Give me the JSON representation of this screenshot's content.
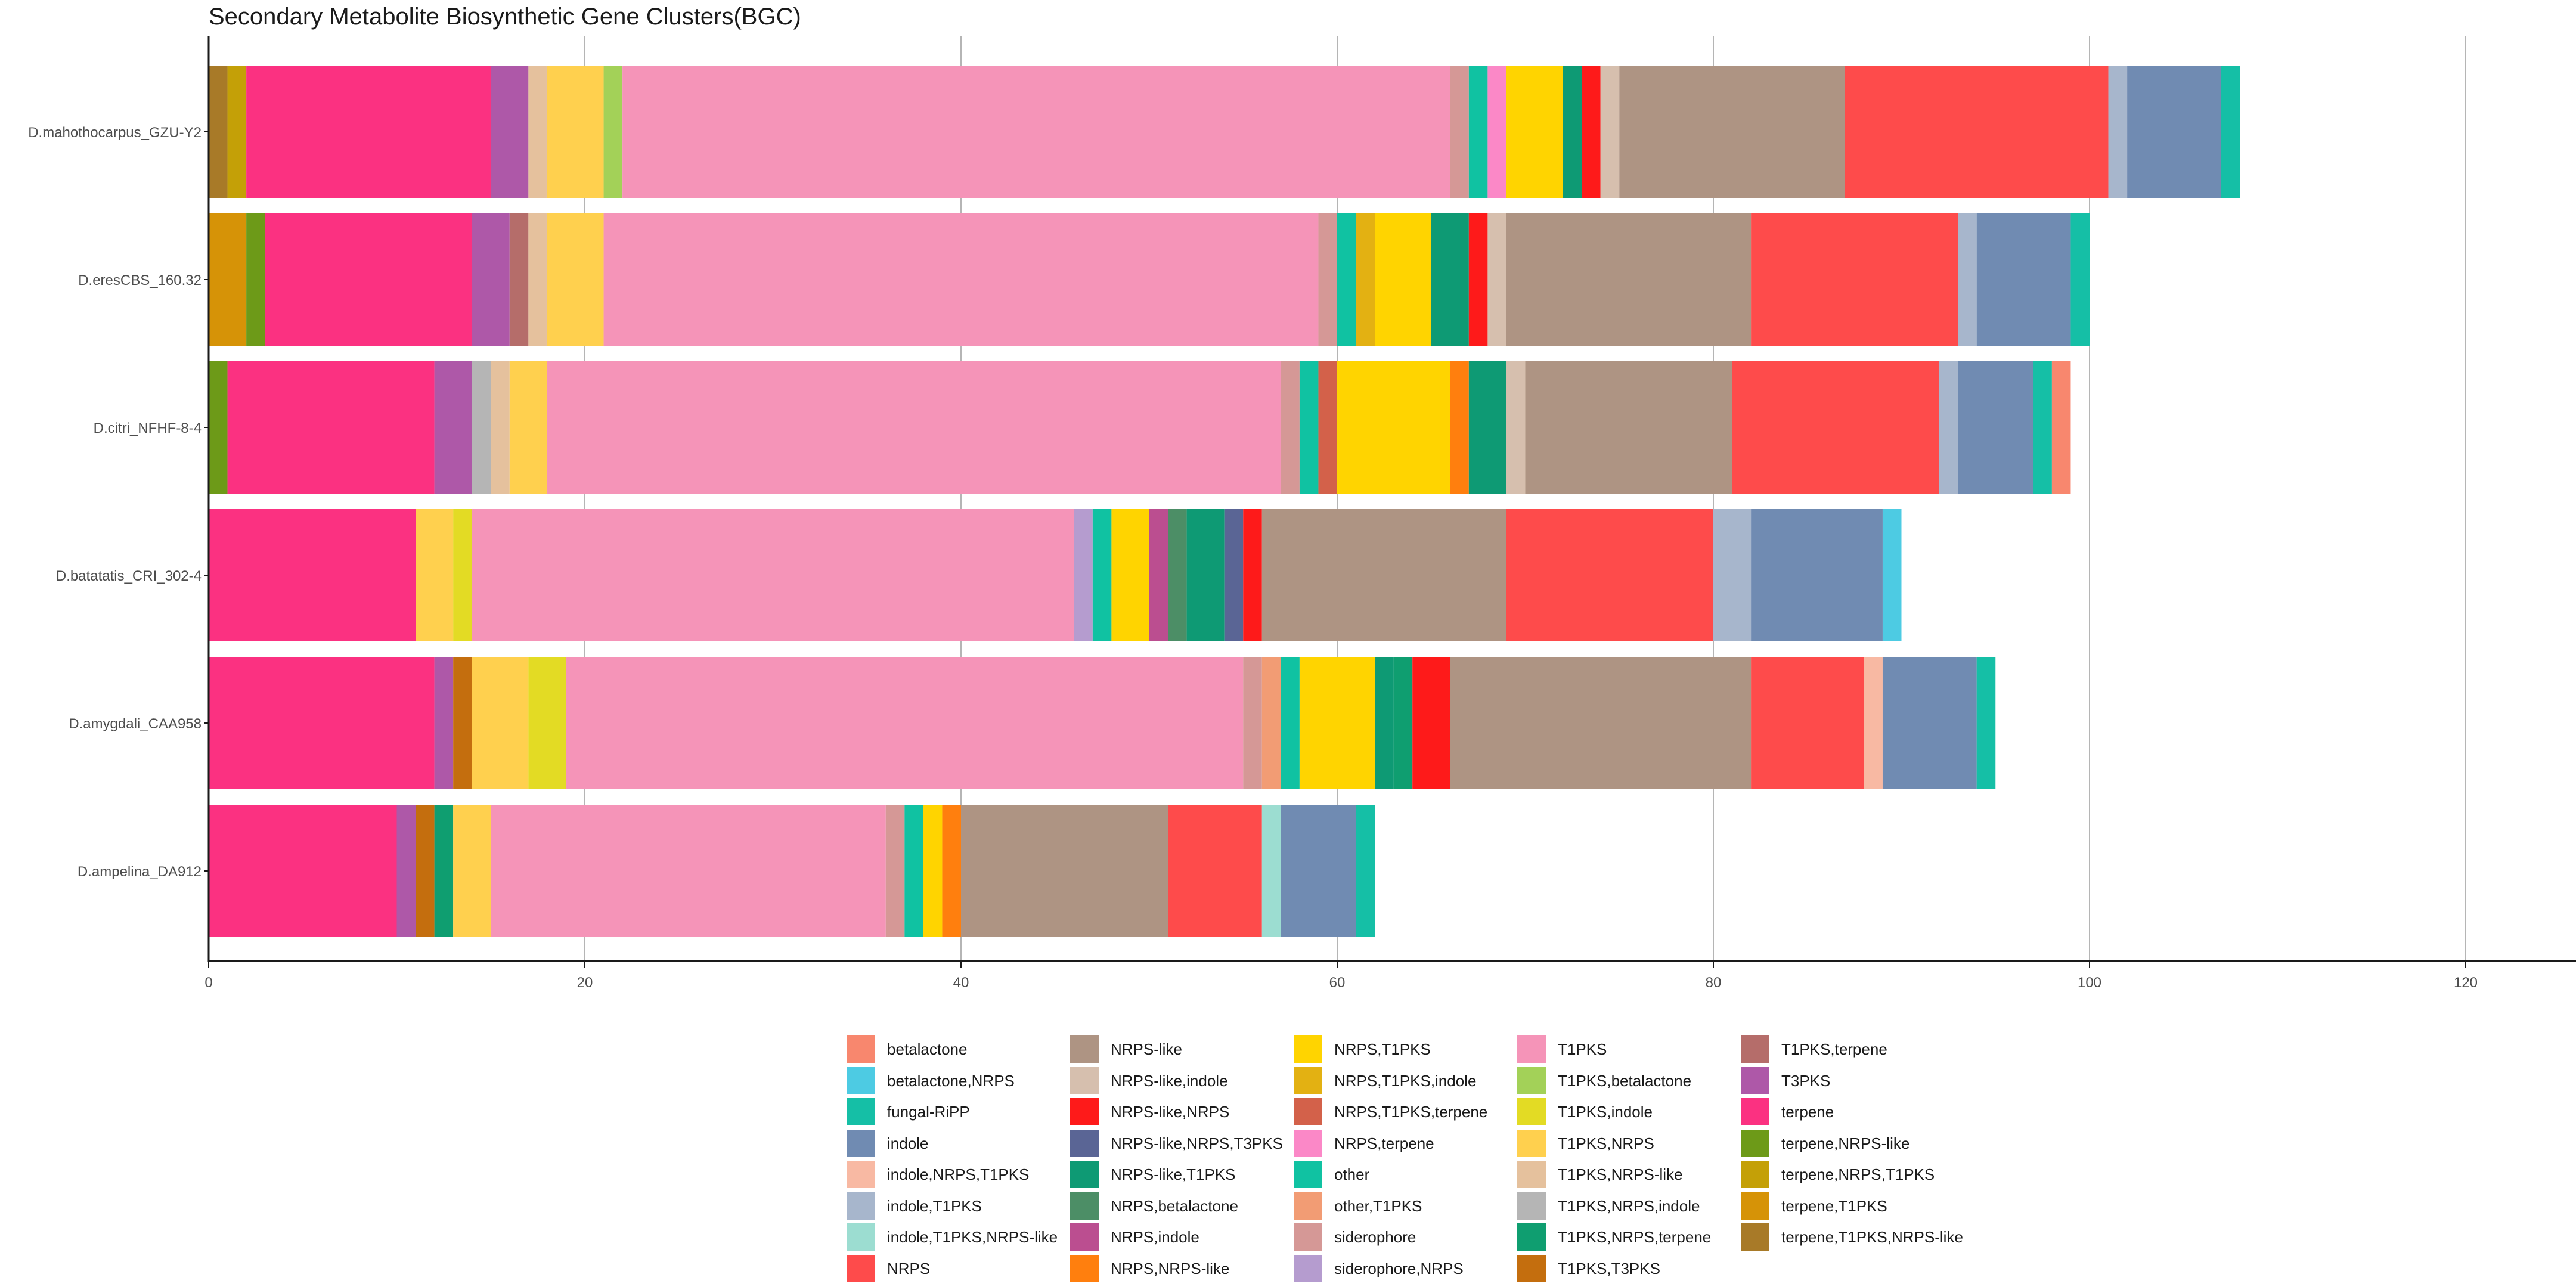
{
  "chart_data": {
    "type": "bar",
    "orientation": "horizontal",
    "stacked": true,
    "title": "Secondary Metabolite Biosynthetic Gene Clusters(BGC)",
    "xlabel": "",
    "ylabel": "",
    "xlim": [
      0,
      126
    ],
    "x_ticks": [
      0,
      20,
      40,
      60,
      80,
      100,
      120
    ],
    "grid": "vertical major lines",
    "legend_position": "bottom",
    "categories": [
      "D.mahothocarpus_GZU-Y2",
      "D.eresCBS_160.32",
      "D.citri_NFHF-8-4",
      "D.batatatis_CRI_302-4",
      "D.amygdali_CAA958",
      "D.ampelina_DA912"
    ],
    "legend": [
      {
        "name": "betalactone",
        "color": "#F8876E"
      },
      {
        "name": "betalactone,NRPS",
        "color": "#4DCBE3"
      },
      {
        "name": "fungal-RiPP",
        "color": "#15BFA6"
      },
      {
        "name": "indole",
        "color": "#708BB2"
      },
      {
        "name": "indole,NRPS,T1PKS",
        "color": "#F8B9A3"
      },
      {
        "name": "indole,T1PKS",
        "color": "#A7B6CC"
      },
      {
        "name": "indole,T1PKS,NRPS-like",
        "color": "#9CDDD1"
      },
      {
        "name": "NRPS",
        "color": "#FE4B4B"
      },
      {
        "name": "NRPS-like",
        "color": "#AE9483"
      },
      {
        "name": "NRPS-like,indole",
        "color": "#D6BFAE"
      },
      {
        "name": "NRPS-like,NRPS",
        "color": "#FE1A1A"
      },
      {
        "name": "NRPS-like,NRPS,T3PKS",
        "color": "#5A6595"
      },
      {
        "name": "NRPS-like,T1PKS",
        "color": "#0E9A74"
      },
      {
        "name": "NRPS,betalactone",
        "color": "#4C8E66"
      },
      {
        "name": "NRPS,indole",
        "color": "#BB4E90"
      },
      {
        "name": "NRPS,NRPS-like",
        "color": "#FF7F0E"
      },
      {
        "name": "NRPS,T1PKS",
        "color": "#FFD400"
      },
      {
        "name": "NRPS,T1PKS,indole",
        "color": "#E3B112"
      },
      {
        "name": "NRPS,T1PKS,terpene",
        "color": "#D3614A"
      },
      {
        "name": "NRPS,terpene",
        "color": "#FB88C7"
      },
      {
        "name": "other",
        "color": "#10C2A2"
      },
      {
        "name": "other,T1PKS",
        "color": "#F29C74"
      },
      {
        "name": "siderophore",
        "color": "#D59896"
      },
      {
        "name": "siderophore,NRPS",
        "color": "#B59CCF"
      },
      {
        "name": "T1PKS",
        "color": "#F594B8"
      },
      {
        "name": "T1PKS,betalactone",
        "color": "#A3D158"
      },
      {
        "name": "T1PKS,indole",
        "color": "#E3DB24"
      },
      {
        "name": "T1PKS,NRPS",
        "color": "#FFD04E"
      },
      {
        "name": "T1PKS,NRPS-like",
        "color": "#E5C19D"
      },
      {
        "name": "T1PKS,NRPS,indole",
        "color": "#B5B5B5"
      },
      {
        "name": "T1PKS,NRPS,terpene",
        "color": "#0F9E70"
      },
      {
        "name": "T1PKS,T3PKS",
        "color": "#C46E0E"
      },
      {
        "name": "T1PKS,terpene",
        "color": "#B56D6A"
      },
      {
        "name": "T3PKS",
        "color": "#AE58A8"
      },
      {
        "name": "terpene",
        "color": "#FB3181"
      },
      {
        "name": "terpene,NRPS-like",
        "color": "#6D9A18"
      },
      {
        "name": "terpene,NRPS,T1PKS",
        "color": "#C4A007"
      },
      {
        "name": "terpene,T1PKS",
        "color": "#D69307"
      },
      {
        "name": "terpene,T1PKS,NRPS-like",
        "color": "#A87A28"
      }
    ],
    "stacks": [
      {
        "category": "D.mahothocarpus_GZU-Y2",
        "segments": [
          {
            "type": "terpene,T1PKS,NRPS-like",
            "value": 1
          },
          {
            "type": "terpene,NRPS,T1PKS",
            "value": 1
          },
          {
            "type": "terpene",
            "value": 13
          },
          {
            "type": "T3PKS",
            "value": 2
          },
          {
            "type": "T1PKS,NRPS-like",
            "value": 1
          },
          {
            "type": "T1PKS,NRPS",
            "value": 3
          },
          {
            "type": "T1PKS,betalactone",
            "value": 1
          },
          {
            "type": "T1PKS",
            "value": 44
          },
          {
            "type": "siderophore",
            "value": 1
          },
          {
            "type": "other",
            "value": 1
          },
          {
            "type": "NRPS,terpene",
            "value": 1
          },
          {
            "type": "NRPS,T1PKS",
            "value": 3
          },
          {
            "type": "NRPS-like,T1PKS",
            "value": 1
          },
          {
            "type": "NRPS-like,NRPS",
            "value": 1
          },
          {
            "type": "NRPS-like,indole",
            "value": 1
          },
          {
            "type": "NRPS-like",
            "value": 12
          },
          {
            "type": "NRPS",
            "value": 14
          },
          {
            "type": "indole,T1PKS",
            "value": 1
          },
          {
            "type": "indole",
            "value": 5
          },
          {
            "type": "fungal-RiPP",
            "value": 1
          }
        ]
      },
      {
        "category": "D.eresCBS_160.32",
        "segments": [
          {
            "type": "terpene,T1PKS",
            "value": 2
          },
          {
            "type": "terpene,NRPS-like",
            "value": 1
          },
          {
            "type": "terpene",
            "value": 11
          },
          {
            "type": "T3PKS",
            "value": 2
          },
          {
            "type": "T1PKS,terpene",
            "value": 1
          },
          {
            "type": "T1PKS,NRPS-like",
            "value": 1
          },
          {
            "type": "T1PKS,NRPS",
            "value": 3
          },
          {
            "type": "T1PKS",
            "value": 38
          },
          {
            "type": "siderophore",
            "value": 1
          },
          {
            "type": "other",
            "value": 1
          },
          {
            "type": "NRPS,T1PKS,indole",
            "value": 1
          },
          {
            "type": "NRPS,T1PKS",
            "value": 3
          },
          {
            "type": "NRPS-like,T1PKS",
            "value": 2
          },
          {
            "type": "NRPS-like,NRPS",
            "value": 1
          },
          {
            "type": "NRPS-like,indole",
            "value": 1
          },
          {
            "type": "NRPS-like",
            "value": 13
          },
          {
            "type": "NRPS",
            "value": 11
          },
          {
            "type": "indole,T1PKS",
            "value": 1
          },
          {
            "type": "indole",
            "value": 5
          },
          {
            "type": "fungal-RiPP",
            "value": 1
          }
        ]
      },
      {
        "category": "D.citri_NFHF-8-4",
        "segments": [
          {
            "type": "terpene,NRPS-like",
            "value": 1
          },
          {
            "type": "terpene",
            "value": 11
          },
          {
            "type": "T3PKS",
            "value": 2
          },
          {
            "type": "T1PKS,NRPS,indole",
            "value": 1
          },
          {
            "type": "T1PKS,NRPS-like",
            "value": 1
          },
          {
            "type": "T1PKS,NRPS",
            "value": 2
          },
          {
            "type": "T1PKS",
            "value": 39
          },
          {
            "type": "siderophore",
            "value": 1
          },
          {
            "type": "other",
            "value": 1
          },
          {
            "type": "NRPS,T1PKS,terpene",
            "value": 1
          },
          {
            "type": "NRPS,T1PKS",
            "value": 6
          },
          {
            "type": "NRPS,NRPS-like",
            "value": 1
          },
          {
            "type": "NRPS-like,T1PKS",
            "value": 2
          },
          {
            "type": "NRPS-like,indole",
            "value": 1
          },
          {
            "type": "NRPS-like",
            "value": 11
          },
          {
            "type": "NRPS",
            "value": 11
          },
          {
            "type": "indole,T1PKS",
            "value": 1
          },
          {
            "type": "indole",
            "value": 4
          },
          {
            "type": "fungal-RiPP",
            "value": 1
          },
          {
            "type": "betalactone",
            "value": 1
          }
        ]
      },
      {
        "category": "D.batatatis_CRI_302-4",
        "segments": [
          {
            "type": "terpene",
            "value": 11
          },
          {
            "type": "T1PKS,NRPS",
            "value": 2
          },
          {
            "type": "T1PKS,indole",
            "value": 1
          },
          {
            "type": "T1PKS",
            "value": 32
          },
          {
            "type": "siderophore,NRPS",
            "value": 1
          },
          {
            "type": "other",
            "value": 1
          },
          {
            "type": "NRPS,T1PKS",
            "value": 2
          },
          {
            "type": "NRPS,indole",
            "value": 1
          },
          {
            "type": "NRPS,betalactone",
            "value": 1
          },
          {
            "type": "NRPS-like,T1PKS",
            "value": 2
          },
          {
            "type": "NRPS-like,NRPS,T3PKS",
            "value": 1
          },
          {
            "type": "NRPS-like,NRPS",
            "value": 1
          },
          {
            "type": "NRPS-like",
            "value": 13
          },
          {
            "type": "NRPS",
            "value": 11
          },
          {
            "type": "indole,T1PKS",
            "value": 2
          },
          {
            "type": "indole",
            "value": 7
          },
          {
            "type": "betalactone,NRPS",
            "value": 1
          }
        ]
      },
      {
        "category": "D.amygdali_CAA958",
        "segments": [
          {
            "type": "terpene",
            "value": 12
          },
          {
            "type": "T3PKS",
            "value": 1
          },
          {
            "type": "T1PKS,T3PKS",
            "value": 1
          },
          {
            "type": "T1PKS,NRPS",
            "value": 3
          },
          {
            "type": "T1PKS,indole",
            "value": 2
          },
          {
            "type": "T1PKS",
            "value": 36
          },
          {
            "type": "siderophore",
            "value": 1
          },
          {
            "type": "other,T1PKS",
            "value": 1
          },
          {
            "type": "other",
            "value": 1
          },
          {
            "type": "NRPS,T1PKS",
            "value": 4
          },
          {
            "type": "NRPS-like,T1PKS",
            "value": 1
          },
          {
            "type": "T1PKS,NRPS,terpene",
            "value": 1
          },
          {
            "type": "NRPS-like,NRPS",
            "value": 2
          },
          {
            "type": "NRPS-like",
            "value": 16
          },
          {
            "type": "NRPS",
            "value": 6
          },
          {
            "type": "indole,NRPS,T1PKS",
            "value": 1
          },
          {
            "type": "indole",
            "value": 5
          },
          {
            "type": "fungal-RiPP",
            "value": 1
          }
        ]
      },
      {
        "category": "D.ampelina_DA912",
        "segments": [
          {
            "type": "terpene",
            "value": 10
          },
          {
            "type": "T3PKS",
            "value": 1
          },
          {
            "type": "T1PKS,T3PKS",
            "value": 1
          },
          {
            "type": "T1PKS,NRPS,terpene",
            "value": 1
          },
          {
            "type": "T1PKS,NRPS",
            "value": 2
          },
          {
            "type": "T1PKS",
            "value": 21
          },
          {
            "type": "siderophore",
            "value": 1
          },
          {
            "type": "other",
            "value": 1
          },
          {
            "type": "NRPS,T1PKS",
            "value": 1
          },
          {
            "type": "NRPS,NRPS-like",
            "value": 1
          },
          {
            "type": "NRPS-like",
            "value": 11
          },
          {
            "type": "NRPS",
            "value": 5
          },
          {
            "type": "indole,T1PKS,NRPS-like",
            "value": 1
          },
          {
            "type": "indole",
            "value": 4
          },
          {
            "type": "fungal-RiPP",
            "value": 1
          }
        ]
      }
    ]
  }
}
